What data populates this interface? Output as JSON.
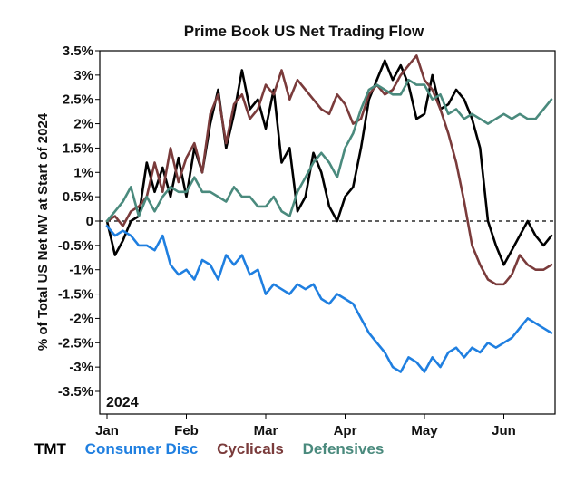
{
  "chart_data": {
    "type": "line",
    "title": "Prime Book US Net Trading Flow",
    "ylabel": "% of Total US Net MV at Start of 2024",
    "annotation": "2024",
    "ylim": [
      -3.9,
      3.6
    ],
    "x_categories": [
      "Jan",
      "Feb",
      "Mar",
      "Apr",
      "May",
      "Jun"
    ],
    "yticks": [
      3.5,
      3,
      2.5,
      2,
      1.5,
      1,
      0.5,
      0,
      -0.5,
      -1,
      -1.5,
      -2,
      -2.5,
      -3,
      -3.5
    ],
    "ytick_labels": [
      "3.5%",
      "3%",
      "2.5%",
      "2%",
      "1.5%",
      "1%",
      "0.5%",
      "0",
      "-0.5%",
      "-1%",
      "-1.5%",
      "-2%",
      "-2.5%",
      "-3%",
      "-3.5%"
    ],
    "zero_line": "dashed",
    "grid": false,
    "legend_position": "bottom",
    "series": [
      {
        "name": "TMT",
        "color": "#000000",
        "x": [
          0,
          0.1,
          0.2,
          0.3,
          0.4,
          0.5,
          0.6,
          0.7,
          0.8,
          0.9,
          1.0,
          1.1,
          1.2,
          1.3,
          1.4,
          1.5,
          1.6,
          1.7,
          1.8,
          1.9,
          2.0,
          2.1,
          2.2,
          2.3,
          2.4,
          2.5,
          2.6,
          2.7,
          2.8,
          2.9,
          3.0,
          3.1,
          3.2,
          3.3,
          3.4,
          3.5,
          3.6,
          3.7,
          3.8,
          3.9,
          4.0,
          4.1,
          4.2,
          4.3,
          4.4,
          4.5,
          4.6,
          4.7,
          4.8,
          4.9,
          5.0,
          5.1,
          5.2,
          5.3,
          5.4,
          5.5,
          5.6
        ],
        "y": [
          0.0,
          -0.7,
          -0.4,
          0.0,
          0.1,
          1.2,
          0.6,
          1.1,
          0.5,
          1.3,
          0.5,
          1.5,
          1.0,
          2.0,
          2.7,
          1.5,
          2.2,
          3.1,
          2.3,
          2.5,
          1.9,
          2.7,
          1.2,
          1.5,
          0.2,
          0.5,
          1.4,
          1.0,
          0.3,
          0.0,
          0.5,
          0.7,
          1.5,
          2.5,
          2.9,
          3.3,
          2.9,
          3.2,
          2.8,
          2.1,
          2.2,
          3.0,
          2.3,
          2.4,
          2.7,
          2.5,
          2.1,
          1.5,
          0.0,
          -0.5,
          -0.9,
          -0.6,
          -0.3,
          0.0,
          -0.3,
          -0.5,
          -0.3
        ]
      },
      {
        "name": "Consumer Disc",
        "color": "#1f7fe0",
        "x": [
          0,
          0.1,
          0.2,
          0.3,
          0.4,
          0.5,
          0.6,
          0.7,
          0.8,
          0.9,
          1.0,
          1.1,
          1.2,
          1.3,
          1.4,
          1.5,
          1.6,
          1.7,
          1.8,
          1.9,
          2.0,
          2.1,
          2.2,
          2.3,
          2.4,
          2.5,
          2.6,
          2.7,
          2.8,
          2.9,
          3.0,
          3.1,
          3.2,
          3.3,
          3.4,
          3.5,
          3.6,
          3.7,
          3.8,
          3.9,
          4.0,
          4.1,
          4.2,
          4.3,
          4.4,
          4.5,
          4.6,
          4.7,
          4.8,
          4.9,
          5.0,
          5.1,
          5.2,
          5.3,
          5.4,
          5.5,
          5.6
        ],
        "y": [
          -0.1,
          -0.3,
          -0.2,
          -0.3,
          -0.5,
          -0.5,
          -0.6,
          -0.3,
          -0.9,
          -1.1,
          -1.0,
          -1.2,
          -0.8,
          -0.9,
          -1.2,
          -0.7,
          -0.9,
          -0.7,
          -1.1,
          -1.0,
          -1.5,
          -1.3,
          -1.4,
          -1.5,
          -1.3,
          -1.4,
          -1.3,
          -1.6,
          -1.7,
          -1.5,
          -1.6,
          -1.7,
          -2.0,
          -2.3,
          -2.5,
          -2.7,
          -3.0,
          -3.1,
          -2.8,
          -2.9,
          -3.1,
          -2.8,
          -3.0,
          -2.7,
          -2.6,
          -2.8,
          -2.6,
          -2.7,
          -2.5,
          -2.6,
          -2.5,
          -2.4,
          -2.2,
          -2.0,
          -2.1,
          -2.2,
          -2.3
        ]
      },
      {
        "name": "Cyclicals",
        "color": "#7a3b3b",
        "x": [
          0,
          0.1,
          0.2,
          0.3,
          0.4,
          0.5,
          0.6,
          0.7,
          0.8,
          0.9,
          1.0,
          1.1,
          1.2,
          1.3,
          1.4,
          1.5,
          1.6,
          1.7,
          1.8,
          1.9,
          2.0,
          2.1,
          2.2,
          2.3,
          2.4,
          2.5,
          2.6,
          2.7,
          2.8,
          2.9,
          3.0,
          3.1,
          3.2,
          3.3,
          3.4,
          3.5,
          3.6,
          3.7,
          3.8,
          3.9,
          4.0,
          4.1,
          4.2,
          4.3,
          4.4,
          4.5,
          4.6,
          4.7,
          4.8,
          4.9,
          5.0,
          5.1,
          5.2,
          5.3,
          5.4,
          5.5,
          5.6
        ],
        "y": [
          0.0,
          0.1,
          -0.1,
          0.2,
          0.3,
          0.5,
          1.2,
          0.6,
          1.5,
          0.8,
          1.3,
          1.6,
          1.0,
          2.2,
          2.6,
          1.6,
          2.4,
          2.6,
          2.1,
          2.3,
          2.8,
          2.6,
          3.1,
          2.5,
          2.9,
          2.7,
          2.5,
          2.3,
          2.2,
          2.6,
          2.4,
          2.0,
          2.1,
          2.6,
          2.8,
          2.6,
          2.7,
          3.0,
          3.2,
          3.4,
          2.9,
          2.7,
          2.3,
          1.8,
          1.2,
          0.4,
          -0.5,
          -0.9,
          -1.2,
          -1.3,
          -1.3,
          -1.1,
          -0.7,
          -0.9,
          -1.0,
          -1.0,
          -0.9
        ]
      },
      {
        "name": "Defensives",
        "color": "#4a8a7d",
        "x": [
          0,
          0.1,
          0.2,
          0.3,
          0.4,
          0.5,
          0.6,
          0.7,
          0.8,
          0.9,
          1.0,
          1.1,
          1.2,
          1.3,
          1.4,
          1.5,
          1.6,
          1.7,
          1.8,
          1.9,
          2.0,
          2.1,
          2.2,
          2.3,
          2.4,
          2.5,
          2.6,
          2.7,
          2.8,
          2.9,
          3.0,
          3.1,
          3.2,
          3.3,
          3.4,
          3.5,
          3.6,
          3.7,
          3.8,
          3.9,
          4.0,
          4.1,
          4.2,
          4.3,
          4.4,
          4.5,
          4.6,
          4.7,
          4.8,
          4.9,
          5.0,
          5.1,
          5.2,
          5.3,
          5.4,
          5.5,
          5.6
        ],
        "y": [
          0.0,
          0.2,
          0.4,
          0.7,
          0.1,
          0.5,
          0.2,
          0.5,
          0.7,
          0.6,
          0.6,
          0.9,
          0.6,
          0.6,
          0.5,
          0.4,
          0.7,
          0.5,
          0.5,
          0.3,
          0.3,
          0.5,
          0.2,
          0.1,
          0.6,
          0.9,
          1.2,
          1.4,
          1.2,
          0.9,
          1.5,
          1.8,
          2.3,
          2.7,
          2.8,
          2.7,
          2.6,
          2.6,
          2.9,
          2.8,
          2.8,
          2.5,
          2.6,
          2.2,
          2.3,
          2.1,
          2.2,
          2.1,
          2.0,
          2.1,
          2.2,
          2.1,
          2.2,
          2.1,
          2.1,
          2.3,
          2.5
        ]
      }
    ]
  }
}
